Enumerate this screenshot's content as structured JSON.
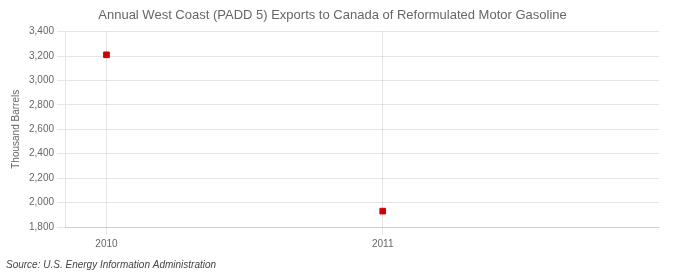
{
  "chart_data": {
    "type": "scatter",
    "title": "Annual West Coast (PADD 5) Exports to Canada of Reformulated Motor Gasoline",
    "ylabel": "Thousand Barrels",
    "annotations": [
      "Source: U.S. Energy Information Administration"
    ],
    "x": [
      2010,
      2011
    ],
    "values": [
      3210,
      1930
    ],
    "color": "#cc0000",
    "marker": "square",
    "xlim": [
      2009.85,
      2012.0
    ],
    "xticks": [
      2010,
      2011
    ],
    "ylim": [
      1800,
      3400
    ],
    "yticks": [
      {
        "value": 1800,
        "label": "1,800"
      },
      {
        "value": 2000,
        "label": "2,000"
      },
      {
        "value": 2200,
        "label": "2,200"
      },
      {
        "value": 2400,
        "label": "2,400"
      },
      {
        "value": 2600,
        "label": "2,600"
      },
      {
        "value": 2800,
        "label": "2,800"
      },
      {
        "value": 3000,
        "label": "3,000"
      },
      {
        "value": 3200,
        "label": "3,200"
      },
      {
        "value": 3400,
        "label": "3,400"
      }
    ],
    "grid": true
  }
}
